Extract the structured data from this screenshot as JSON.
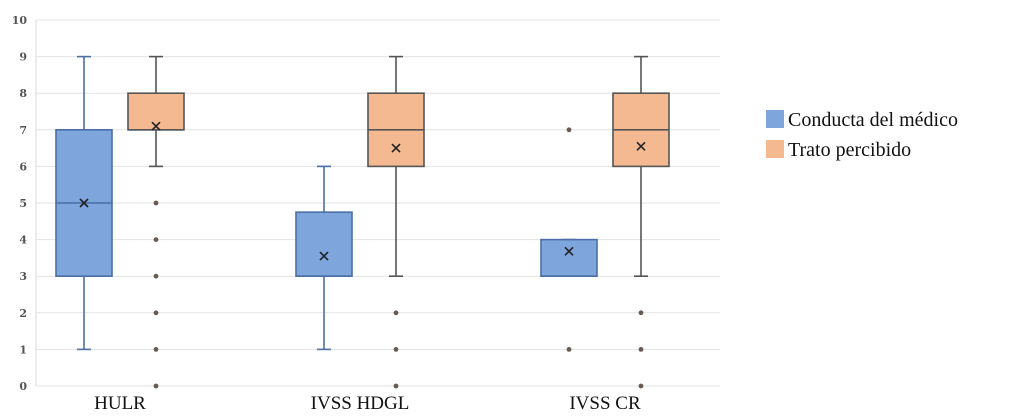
{
  "chart_data": {
    "type": "box",
    "title": "",
    "xlabel": "",
    "ylabel": "",
    "ylim": [
      0,
      10
    ],
    "yticks": [
      0,
      1,
      2,
      3,
      4,
      5,
      6,
      7,
      8,
      9,
      10
    ],
    "grid": "horizontal",
    "legend_position": "right",
    "categories": [
      "HULR",
      "IVSS HDGL",
      "IVSS CR"
    ],
    "series": [
      {
        "name": "Conducta del médico",
        "color": "#7ea6dc",
        "stroke": "#4a6fa5",
        "boxes": [
          {
            "min": 1,
            "q1": 3,
            "median": 5,
            "q3": 7,
            "max": 9,
            "mean": 5,
            "outliers": []
          },
          {
            "min": 1,
            "q1": 3,
            "median": 3,
            "q3": 4.75,
            "max": 6,
            "mean": 3.55,
            "outliers": []
          },
          {
            "min": 3,
            "q1": 3,
            "median": 3,
            "q3": 4,
            "max": 4,
            "mean": 3.68,
            "outliers": [
              1,
              7
            ]
          }
        ]
      },
      {
        "name": "Trato percibido",
        "color": "#f4b990",
        "stroke": "#555555",
        "boxes": [
          {
            "min": 6,
            "q1": 7,
            "median": 7,
            "q3": 8,
            "max": 9,
            "mean": 7.1,
            "outliers": [
              0,
              1,
              2,
              3,
              4,
              5
            ]
          },
          {
            "min": 3,
            "q1": 6,
            "median": 7,
            "q3": 8,
            "max": 9,
            "mean": 6.5,
            "outliers": [
              0,
              1,
              2
            ]
          },
          {
            "min": 3,
            "q1": 6,
            "median": 7,
            "q3": 8,
            "max": 9,
            "mean": 6.55,
            "outliers": [
              0,
              1,
              2
            ]
          }
        ]
      }
    ]
  }
}
